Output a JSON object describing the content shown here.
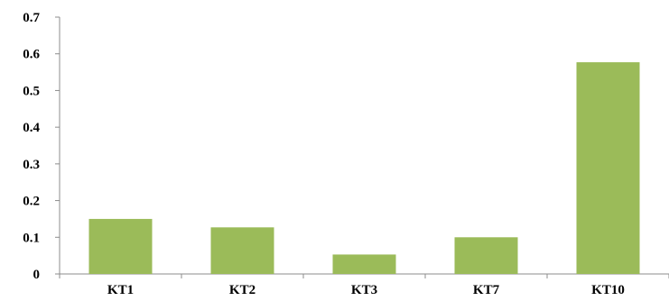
{
  "chart_data": {
    "type": "bar",
    "categories": [
      "KT1",
      "KT2",
      "KT3",
      "KT7",
      "KT10"
    ],
    "values": [
      0.15,
      0.127,
      0.053,
      0.1,
      0.577
    ],
    "ylim": [
      0,
      0.7
    ],
    "yticks": [
      "0",
      "0.1",
      "0.2",
      "0.3",
      "0.4",
      "0.5",
      "0.6",
      "0.7"
    ],
    "title": "",
    "xlabel": "",
    "ylabel": "",
    "grid": false,
    "legend": "none",
    "bar_color": "#9bbb59"
  }
}
